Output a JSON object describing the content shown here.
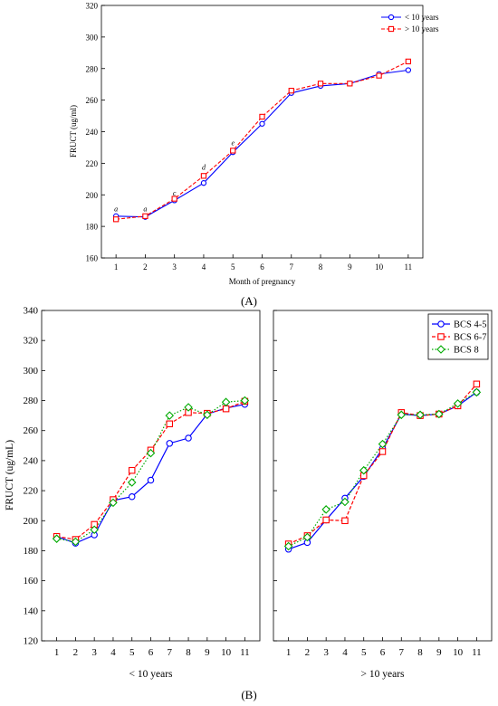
{
  "chart_data": [
    {
      "type": "line",
      "panel_label": "(A)",
      "xlabel": "Month of pregnancy",
      "ylabel": "FRUCT (ug/ml)",
      "x": [
        1,
        2,
        3,
        4,
        5,
        6,
        7,
        8,
        9,
        10,
        11
      ],
      "ylim": [
        160,
        320
      ],
      "yticks": [
        160,
        180,
        200,
        220,
        240,
        260,
        280,
        300,
        320
      ],
      "legend_position": "top-right",
      "series": [
        {
          "name": "< 10 years",
          "color": "#0000ff",
          "dash": "solid",
          "marker": "circle",
          "values": [
            186.5,
            186,
            196.5,
            207.5,
            227,
            245,
            264.5,
            269,
            270.5,
            276.5,
            279
          ]
        },
        {
          "name": "> 10 years",
          "color": "#ff0000",
          "dash": "dashed",
          "marker": "square",
          "values": [
            184.5,
            186.5,
            197.5,
            212,
            228,
            249.5,
            266,
            270.5,
            270.5,
            275.5,
            284.5
          ]
        }
      ],
      "annotations": [
        {
          "x": 1,
          "y": 189.5,
          "text": "a"
        },
        {
          "x": 2,
          "y": 189.5,
          "text": "a"
        },
        {
          "x": 3,
          "y": 199.5,
          "text": "c"
        },
        {
          "x": 4,
          "y": 216,
          "text": "d"
        },
        {
          "x": 5,
          "y": 231.5,
          "text": "e"
        }
      ]
    },
    {
      "type": "line",
      "panel_label": "(B)",
      "ylabel": "FRUCT (ug/mL)",
      "ylim": [
        120,
        340
      ],
      "yticks": [
        120,
        140,
        160,
        180,
        200,
        220,
        240,
        260,
        280,
        300,
        320,
        340
      ],
      "legend_position": "top-right",
      "panels": [
        {
          "xlabel": "< 10 years",
          "x": [
            1,
            2,
            3,
            4,
            5,
            6,
            7,
            8,
            9,
            10,
            11
          ],
          "series": [
            {
              "name": "BCS 4-5",
              "color": "#0000ff",
              "dash": "solid",
              "marker": "circle",
              "values": [
                189.5,
                185,
                190.5,
                213.5,
                216,
                227,
                251.5,
                255,
                271,
                275,
                277.5
              ]
            },
            {
              "name": "BCS 6-7",
              "color": "#ff0000",
              "dash": "dashed",
              "marker": "square",
              "values": [
                189.5,
                187.5,
                197.5,
                214,
                233.5,
                247,
                264.5,
                272,
                271.5,
                274.5,
                279.5
              ]
            },
            {
              "name": "BCS 8",
              "color": "#00aa00",
              "dash": "dotted",
              "marker": "diamond",
              "values": [
                188,
                186,
                194,
                212,
                225.5,
                245,
                270,
                275.5,
                270.5,
                279,
                280
              ]
            }
          ]
        },
        {
          "xlabel": "> 10 years",
          "x": [
            1,
            2,
            3,
            4,
            5,
            6,
            7,
            8,
            9,
            10,
            11
          ],
          "series": [
            {
              "name": "BCS 4-5",
              "color": "#0000ff",
              "dash": "solid",
              "marker": "circle",
              "values": [
                181,
                185.5,
                200.5,
                215,
                229.5,
                248,
                271,
                270,
                271,
                276.5,
                285.5
              ]
            },
            {
              "name": "BCS 6-7",
              "color": "#ff0000",
              "dash": "dashed",
              "marker": "square",
              "values": [
                184.5,
                190,
                200.5,
                200,
                230,
                246,
                272,
                270,
                271,
                276.5,
                291
              ]
            },
            {
              "name": "BCS 8",
              "color": "#00aa00",
              "dash": "dotted",
              "marker": "diamond",
              "values": [
                183,
                189,
                207.5,
                212.5,
                233.5,
                251,
                270.5,
                270.5,
                271,
                278,
                285.5
              ]
            }
          ]
        }
      ]
    }
  ]
}
